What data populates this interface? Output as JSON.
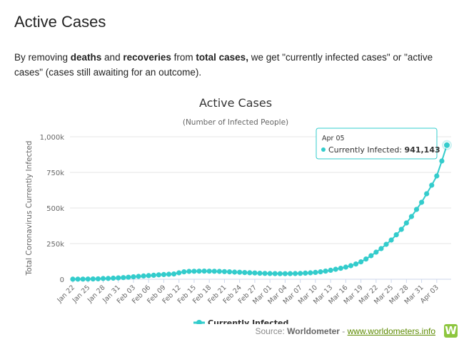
{
  "page": {
    "title": "Active Cases",
    "intro": {
      "p1": "By removing ",
      "b1": "deaths",
      "p2": " and ",
      "b2": "recoveries",
      "p3": " from ",
      "b3": "total cases,",
      "p4": " we get \"currently infected cases\" or \"active cases\" (cases still awaiting for an outcome)."
    },
    "source": {
      "prefix": "Source: ",
      "brand": "Worldometer",
      "sep": " - ",
      "link": "www.worldometers.info",
      "logo": "W"
    }
  },
  "colors": {
    "series": "#33cccc",
    "grid": "#e6e6e6",
    "axis": "#ccd6eb"
  },
  "tooltip": {
    "date": "Apr 05",
    "label": "Currently Infected: ",
    "value": "941,143"
  },
  "chart_data": {
    "type": "line",
    "title": "Active Cases",
    "subtitle": "(Number of Infected People)",
    "ylabel": "Total Coronavirus Currently Infected",
    "ylim": [
      0,
      1000000
    ],
    "yticks": [
      0,
      250000,
      500000,
      750000,
      1000000
    ],
    "ytick_labels": [
      "0",
      "250k",
      "500k",
      "750k",
      "1,000k"
    ],
    "xtick_labels": [
      "Jan 22",
      "Jan 25",
      "Jan 28",
      "Jan 31",
      "Feb 03",
      "Feb 06",
      "Feb 09",
      "Feb 12",
      "Feb 15",
      "Feb 18",
      "Feb 21",
      "Feb 24",
      "Feb 27",
      "Mar 01",
      "Mar 04",
      "Mar 07",
      "Mar 10",
      "Mar 13",
      "Mar 16",
      "Mar 19",
      "Mar 22",
      "Mar 25",
      "Mar 28",
      "Mar 31",
      "Apr 03"
    ],
    "legend": "bottom-center",
    "grid": true,
    "series": [
      {
        "name": "Currently Infected",
        "x": [
          "Jan 22",
          "Jan 23",
          "Jan 24",
          "Jan 25",
          "Jan 26",
          "Jan 27",
          "Jan 28",
          "Jan 29",
          "Jan 30",
          "Jan 31",
          "Feb 01",
          "Feb 02",
          "Feb 03",
          "Feb 04",
          "Feb 05",
          "Feb 06",
          "Feb 07",
          "Feb 08",
          "Feb 09",
          "Feb 10",
          "Feb 11",
          "Feb 12",
          "Feb 13",
          "Feb 14",
          "Feb 15",
          "Feb 16",
          "Feb 17",
          "Feb 18",
          "Feb 19",
          "Feb 20",
          "Feb 21",
          "Feb 22",
          "Feb 23",
          "Feb 24",
          "Feb 25",
          "Feb 26",
          "Feb 27",
          "Feb 28",
          "Feb 29",
          "Mar 01",
          "Mar 02",
          "Mar 03",
          "Mar 04",
          "Mar 05",
          "Mar 06",
          "Mar 07",
          "Mar 08",
          "Mar 09",
          "Mar 10",
          "Mar 11",
          "Mar 12",
          "Mar 13",
          "Mar 14",
          "Mar 15",
          "Mar 16",
          "Mar 17",
          "Mar 18",
          "Mar 19",
          "Mar 20",
          "Mar 21",
          "Mar 22",
          "Mar 23",
          "Mar 24",
          "Mar 25",
          "Mar 26",
          "Mar 27",
          "Mar 28",
          "Mar 29",
          "Mar 30",
          "Mar 31",
          "Apr 01",
          "Apr 02",
          "Apr 03",
          "Apr 04",
          "Apr 05"
        ],
        "values": [
          500,
          600,
          900,
          1300,
          2000,
          2800,
          5000,
          5700,
          7500,
          9500,
          11500,
          14000,
          17000,
          20000,
          23000,
          25500,
          28000,
          31000,
          33000,
          35000,
          37000,
          45000,
          52000,
          55000,
          56000,
          56500,
          57000,
          56500,
          56000,
          55000,
          53500,
          52000,
          50000,
          49000,
          47000,
          45500,
          44000,
          42000,
          41000,
          40000,
          39500,
          39000,
          39000,
          39500,
          40000,
          41000,
          43000,
          45000,
          48000,
          52000,
          57000,
          63000,
          70000,
          77000,
          85000,
          95000,
          107000,
          122000,
          142000,
          165000,
          190000,
          215000,
          245000,
          275000,
          312000,
          350000,
          395000,
          440000,
          490000,
          540000,
          600000,
          660000,
          725000,
          830000,
          941143
        ]
      }
    ]
  }
}
